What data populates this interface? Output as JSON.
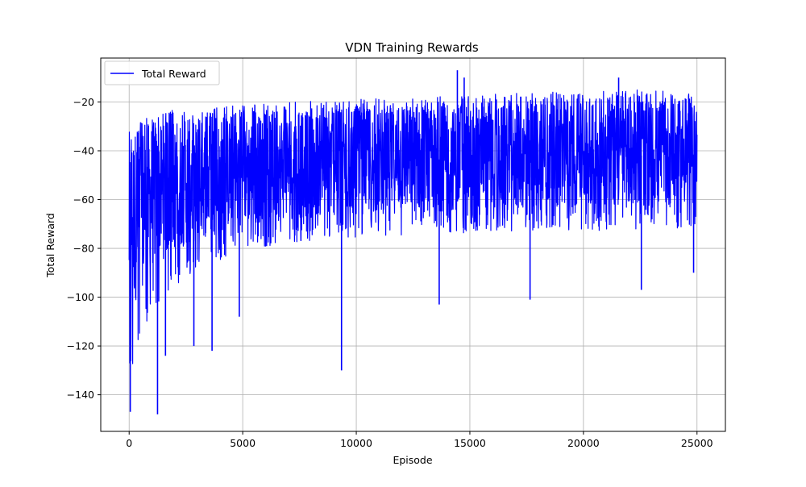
{
  "chart_data": {
    "type": "line",
    "title": "VDN Training Rewards",
    "xlabel": "Episode",
    "ylabel": "Total Reward",
    "xlim": [
      -1250,
      26250
    ],
    "ylim": [
      -155,
      -2
    ],
    "x_ticks": [
      0,
      5000,
      10000,
      15000,
      20000,
      25000
    ],
    "y_ticks": [
      -140,
      -120,
      -100,
      -80,
      -60,
      -40,
      -20
    ],
    "grid": true,
    "legend_position": "top-left",
    "colors": {
      "series": "#0000ff",
      "grid": "#b0b0b0",
      "axes": "#000000"
    },
    "series": [
      {
        "name": "Total Reward",
        "episodes": 25000,
        "envelope": {
          "x": [
            0,
            500,
            1000,
            2000,
            3000,
            4000,
            5000,
            7500,
            10000,
            12500,
            15000,
            17500,
            20000,
            22500,
            25000
          ],
          "upper": [
            -34,
            -27,
            -25,
            -23,
            -24,
            -22,
            -21,
            -20,
            -19,
            -18,
            -17,
            -16,
            -16,
            -15,
            -16
          ],
          "lower": [
            -135,
            -118,
            -105,
            -95,
            -90,
            -85,
            -80,
            -78,
            -76,
            -75,
            -74,
            -73,
            -73,
            -72,
            -72
          ],
          "mean": [
            -70,
            -63,
            -58,
            -54,
            -52,
            -50,
            -48,
            -46,
            -45,
            -44,
            -43,
            -43,
            -42,
            -42,
            -42
          ]
        },
        "notable_points": [
          {
            "x": 50,
            "y": -147
          },
          {
            "x": 1250,
            "y": -148
          },
          {
            "x": 1600,
            "y": -124
          },
          {
            "x": 2850,
            "y": -120
          },
          {
            "x": 3650,
            "y": -122
          },
          {
            "x": 4850,
            "y": -108
          },
          {
            "x": 9350,
            "y": -130
          },
          {
            "x": 13650,
            "y": -103
          },
          {
            "x": 17650,
            "y": -101
          },
          {
            "x": 22550,
            "y": -97
          },
          {
            "x": 24850,
            "y": -90
          },
          {
            "x": 14450,
            "y": -7
          },
          {
            "x": 14750,
            "y": -10
          },
          {
            "x": 21550,
            "y": -10
          }
        ]
      }
    ]
  }
}
